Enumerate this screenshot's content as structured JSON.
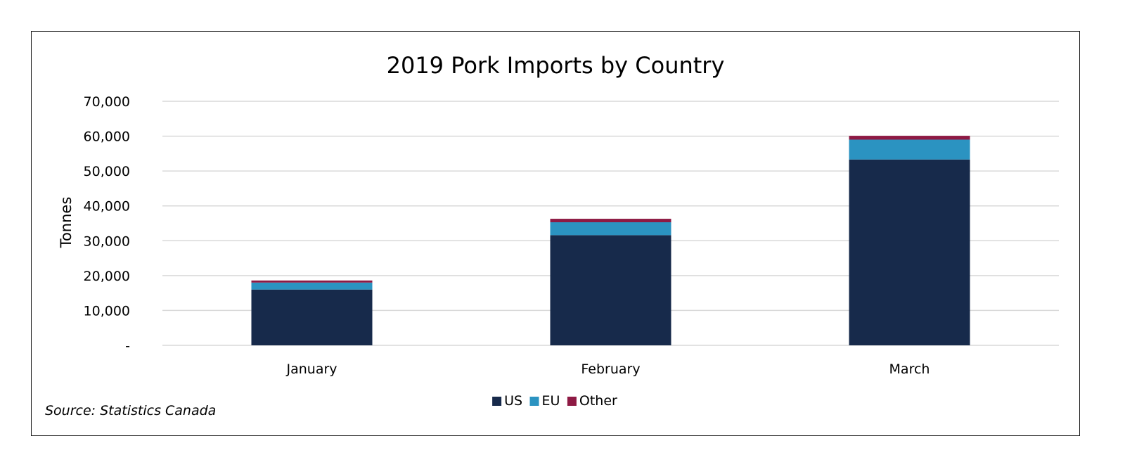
{
  "chart_data": {
    "type": "bar",
    "stacked": true,
    "title": "2019 Pork Imports by Country",
    "xlabel": "",
    "ylabel": "Tonnes",
    "categories": [
      "January",
      "February",
      "March"
    ],
    "series": [
      {
        "name": "US",
        "color": "#172a4b",
        "values": [
          16000,
          31600,
          53300
        ]
      },
      {
        "name": "EU",
        "color": "#2b93c1",
        "values": [
          2000,
          3700,
          5700
        ]
      },
      {
        "name": "Other",
        "color": "#8e1a44",
        "values": [
          600,
          1000,
          1100
        ]
      }
    ],
    "ylim": [
      0,
      70000
    ],
    "yticks": [
      0,
      10000,
      20000,
      30000,
      40000,
      50000,
      60000,
      70000
    ],
    "ytick_labels": [
      "-",
      "10,000",
      "20,000",
      "30,000",
      "40,000",
      "50,000",
      "60,000",
      "70,000"
    ],
    "grid": true,
    "legend_position": "bottom",
    "source_note": "Source: Statistics Canada"
  }
}
